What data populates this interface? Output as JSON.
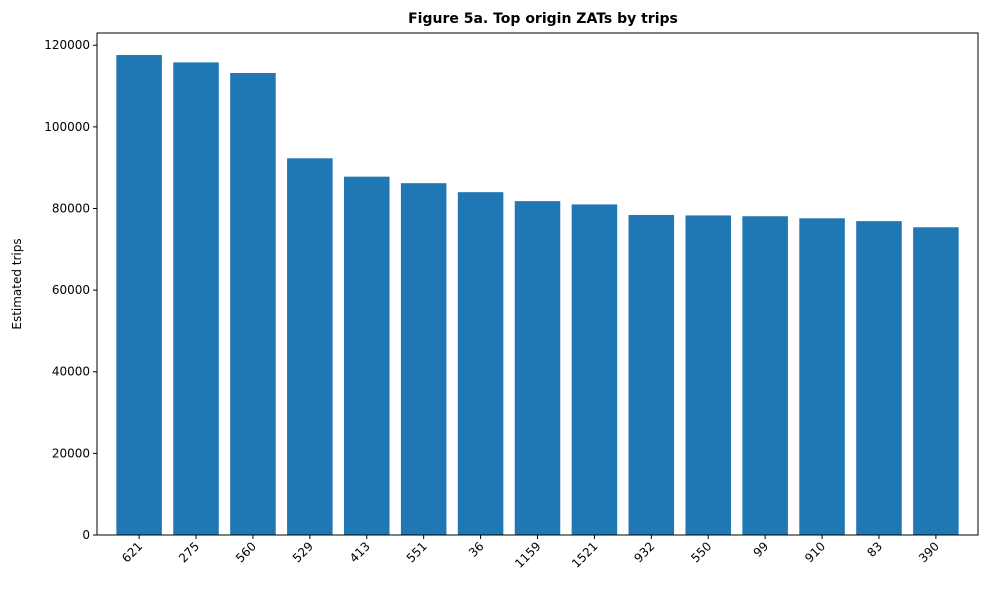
{
  "chart_data": {
    "type": "bar",
    "title": "Figure 5a. Top origin ZATs by trips",
    "xlabel": "",
    "ylabel": "Estimated trips",
    "categories": [
      "621",
      "275",
      "560",
      "529",
      "413",
      "551",
      "36",
      "1159",
      "1521",
      "932",
      "550",
      "99",
      "910",
      "83",
      "390"
    ],
    "values": [
      117600,
      115800,
      113200,
      92300,
      87800,
      86200,
      84000,
      81800,
      81000,
      78400,
      78300,
      78100,
      77600,
      76900,
      75400
    ],
    "ylim": [
      0,
      123000
    ],
    "yticks": [
      0,
      20000,
      40000,
      60000,
      80000,
      100000,
      120000
    ],
    "bar_color": "#1f77b4",
    "grid": false,
    "legend": "none"
  }
}
